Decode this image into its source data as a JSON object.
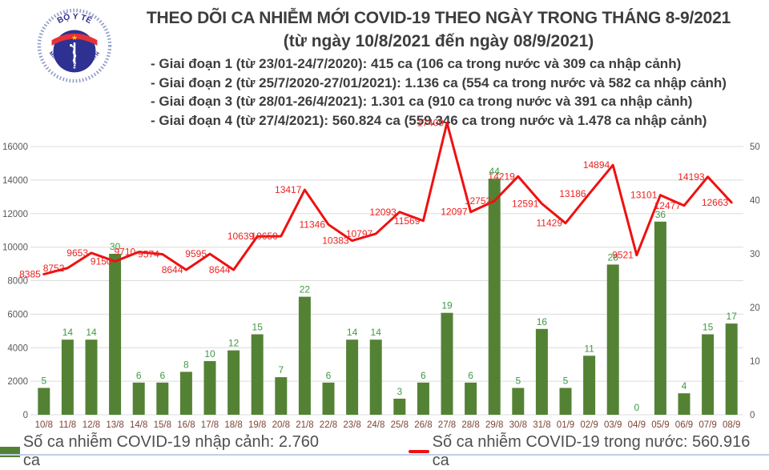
{
  "header": {
    "title": "THEO DÕI CA NHIỄM MỚI COVID-19 THEO NGÀY TRONG THÁNG 8-9/2021",
    "subtitle": "(từ ngày 10/8/2021 đến ngày 08/9/2021)",
    "bullets": [
      "- Giai đoạn 1 (từ 23/01-24/7/2020): 415 ca (106 ca trong nước và 309 ca nhập cảnh)",
      "- Giai đoạn 2 (từ 25/7/2020-27/01/2021): 1.136 ca (554 ca trong nước và 582 ca nhập cảnh)",
      "- Giai đoạn 3 (từ 28/01-26/4/2021): 1.301 ca (910 ca trong nước và 391 ca nhập cảnh)",
      "- Giai đoạn 4 (từ 27/4/2021): 560.824 ca (559.346 ca trong nước và 1.478 ca nhập cảnh)"
    ],
    "logo": {
      "top_text": "BỘ Y TẾ",
      "bottom_text": "MINISTRY OF HEALTH",
      "blue": "#2e3192",
      "red": "#e53238",
      "star": "#ffd400"
    }
  },
  "chart_data": {
    "type": "bar+line",
    "categories": [
      "10/8",
      "11/8",
      "12/8",
      "13/8",
      "14/8",
      "15/8",
      "16/8",
      "17/8",
      "18/8",
      "19/8",
      "20/8",
      "21/8",
      "22/8",
      "23/8",
      "24/8",
      "25/8",
      "26/8",
      "27/8",
      "28/8",
      "29/8",
      "30/8",
      "31/8",
      "01/9",
      "02/9",
      "03/9",
      "04/9",
      "05/9",
      "06/9",
      "07/9",
      "08/9"
    ],
    "series": [
      {
        "name": "Số ca nhiễm COVID-19 nhập cảnh: 2.760 ca",
        "type": "bar",
        "axis": "right",
        "values": [
          5,
          14,
          14,
          30,
          6,
          6,
          8,
          10,
          12,
          15,
          7,
          22,
          6,
          14,
          14,
          3,
          6,
          19,
          6,
          44,
          5,
          16,
          5,
          11,
          28,
          0,
          36,
          4,
          15,
          17
        ]
      },
      {
        "name": "Số ca nhiễm COVID-19 trong nước: 560.916 ca",
        "type": "line",
        "axis": "left",
        "values": [
          8385,
          8752,
          9653,
          9150,
          9710,
          9574,
          8644,
          9595,
          8644,
          10639,
          10650,
          13417,
          11346,
          10383,
          10797,
          12093,
          11569,
          17409,
          12097,
          12752,
          14219,
          12591,
          11429,
          13186,
          14894,
          9521,
          13101,
          12477,
          14193,
          12663
        ]
      }
    ],
    "left_axis": {
      "min": 0,
      "max": 16000,
      "ticks": [
        0,
        2000,
        4000,
        6000,
        8000,
        10000,
        12000,
        14000,
        16000
      ],
      "plot_max": 17500
    },
    "right_axis": {
      "min": 0,
      "max": 50,
      "ticks": [
        0,
        10,
        20,
        30,
        40,
        50
      ]
    },
    "grid": true,
    "legend_position": "bottom",
    "colors": {
      "bar": "#548235",
      "bar_label": "#3f9a43",
      "line": "#ee1111",
      "line_label": "#ee2222",
      "grid": "#dcdcdc",
      "axis_text": "#595959",
      "x_labels": "#7f4433"
    }
  },
  "legend": {
    "bar_label": "Số ca nhiễm COVID-19 nhập cảnh: 2.760 ca",
    "line_label": "Số ca nhiễm COVID-19 trong nước: 560.916 ca"
  }
}
